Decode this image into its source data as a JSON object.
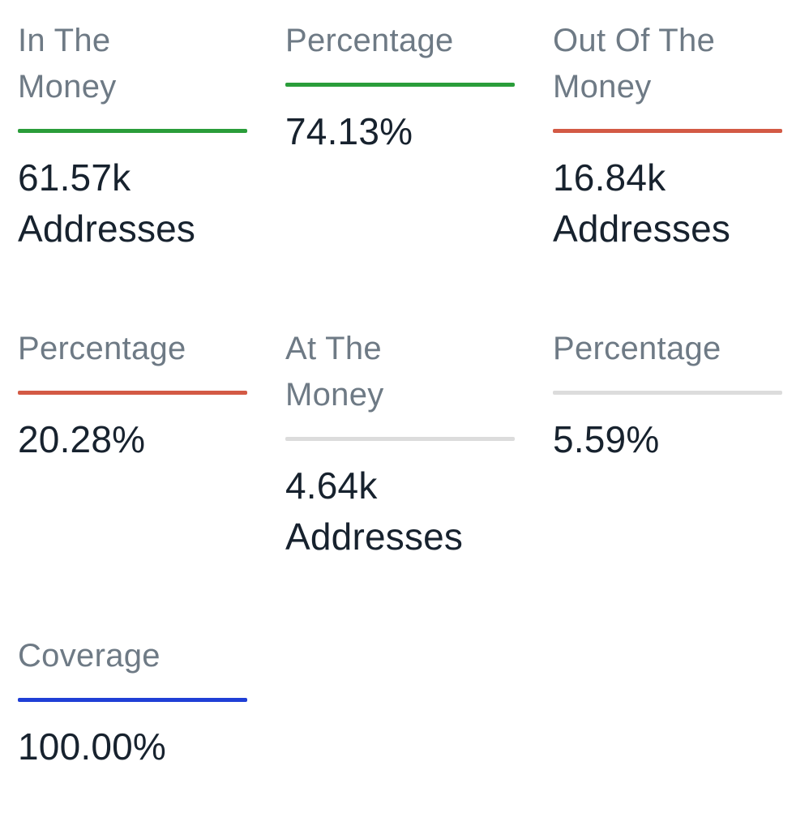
{
  "colors": {
    "in_the_money": "#2a9d3a",
    "out_of_the_money": "#d35a45",
    "at_the_money": "#dcdcdc",
    "coverage": "#1f3fd6",
    "label_text": "#6e7a85",
    "value_text": "#17222e"
  },
  "stats": [
    {
      "label": "In The\nMoney",
      "value": "61.57k\nAddresses",
      "bar_color": "#2a9d3a"
    },
    {
      "label": "Percentage",
      "value": "74.13%",
      "bar_color": "#2a9d3a"
    },
    {
      "label": "Out Of The\nMoney",
      "value": "16.84k\nAddresses",
      "bar_color": "#d35a45"
    },
    {
      "label": "Percentage",
      "value": "20.28%",
      "bar_color": "#d35a45"
    },
    {
      "label": "At The\nMoney",
      "value": "4.64k\nAddresses",
      "bar_color": "#dcdcdc"
    },
    {
      "label": "Percentage",
      "value": "5.59%",
      "bar_color": "#dcdcdc"
    },
    {
      "label": "Coverage",
      "value": "100.00%",
      "bar_color": "#1f3fd6"
    }
  ]
}
